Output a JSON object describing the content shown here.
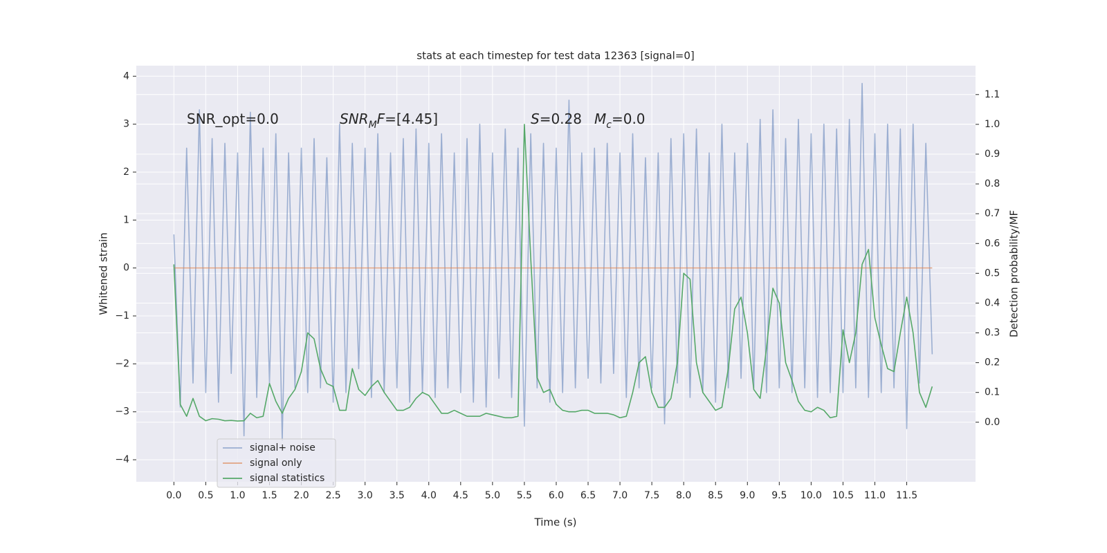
{
  "chart_data": {
    "type": "line",
    "title": "stats at each timestep for test data 12363 [signal=0]",
    "xlabel": "Time (s)",
    "ylabel": "Whitened strain",
    "y2label": "Detection probability/MF",
    "grid": true,
    "legend": "lower left",
    "background": "#eaeaf2",
    "xlim": [
      -0.59,
      12.58
    ],
    "ylim": [
      -4.46,
      4.22
    ],
    "y2lim": [
      -0.2,
      1.197
    ],
    "xticks": [
      {
        "value": 0,
        "label": "0.0"
      },
      0.5,
      {
        "value": 1,
        "label": "1.0"
      },
      1.5,
      {
        "value": 2,
        "label": "2.0"
      },
      2.5,
      {
        "value": 3,
        "label": "3.0"
      },
      3.5,
      {
        "value": 4,
        "label": "4.0"
      },
      4.5,
      {
        "value": 5,
        "label": "5.0"
      },
      5.5,
      {
        "value": 6,
        "label": "6.0"
      },
      6.5,
      {
        "value": 7,
        "label": "7.0"
      },
      7.5,
      {
        "value": 8,
        "label": "8.0"
      },
      8.5,
      {
        "value": 9,
        "label": "9.0"
      },
      9.5,
      {
        "value": 10,
        "label": "10.0"
      },
      10.5,
      {
        "value": 11,
        "label": "11.0"
      },
      11.5
    ],
    "yticks": [
      {
        "value": -4,
        "label": "−4"
      },
      {
        "value": -3,
        "label": "−3"
      },
      {
        "value": -2,
        "label": "−2"
      },
      {
        "value": -1,
        "label": "−1"
      },
      0,
      1,
      2,
      3,
      4
    ],
    "y2ticks": [
      {
        "value": 0,
        "label": "0.0"
      },
      0.1,
      0.2,
      0.3,
      0.4,
      0.5,
      0.6,
      0.7,
      0.8,
      0.9,
      {
        "value": 1,
        "label": "1.0"
      },
      1.1
    ],
    "annotations": [
      [
        {
          "text": "SNR_opt=0.0"
        }
      ],
      [
        {
          "text": "SNR",
          "italic": true
        },
        {
          "text": "M",
          "italic": true,
          "sub": true
        },
        {
          "text": "F",
          "italic": true
        },
        {
          "text": "=[4.45]"
        }
      ],
      [
        {
          "text": "S",
          "italic": true
        },
        {
          "text": "=0.28"
        }
      ],
      [
        {
          "text": "M",
          "italic": true
        },
        {
          "text": "c",
          "italic": true,
          "sub": true
        },
        {
          "text": "=0.0"
        }
      ]
    ],
    "x": [
      0,
      0.1,
      0.2,
      0.3,
      0.4,
      0.5,
      0.6,
      0.7,
      0.8,
      0.9,
      1,
      1.1,
      1.2,
      1.3,
      1.4,
      1.5,
      1.6,
      1.7,
      1.8,
      1.9,
      2,
      2.1,
      2.2,
      2.3,
      2.4,
      2.5,
      2.6,
      2.7,
      2.8,
      2.9,
      3,
      3.1,
      3.2,
      3.3,
      3.4,
      3.5,
      3.6,
      3.7,
      3.8,
      3.9,
      4,
      4.1,
      4.2,
      4.3,
      4.4,
      4.5,
      4.6,
      4.7,
      4.8,
      4.9,
      5,
      5.1,
      5.2,
      5.3,
      5.4,
      5.5,
      5.6,
      5.7,
      5.8,
      5.9,
      6,
      6.1,
      6.2,
      6.3,
      6.4,
      6.5,
      6.6,
      6.7,
      6.8,
      6.9,
      7,
      7.1,
      7.2,
      7.3,
      7.4,
      7.5,
      7.6,
      7.7,
      7.8,
      7.9,
      8,
      8.1,
      8.2,
      8.3,
      8.4,
      8.5,
      8.6,
      8.7,
      8.8,
      8.9,
      9,
      9.1,
      9.2,
      9.3,
      9.4,
      9.5,
      9.6,
      9.7,
      9.8,
      9.9,
      10,
      10.1,
      10.2,
      10.3,
      10.4,
      10.5,
      10.6,
      10.7,
      10.8,
      10.9,
      11,
      11.1,
      11.2,
      11.3,
      11.4,
      11.5,
      11.6,
      11.7,
      11.8,
      11.9
    ],
    "series": [
      {
        "name": "signal+ noise",
        "color": "#4c72b0",
        "alpha": 0.5,
        "axis": "y",
        "values": [
          0.7,
          -2.9,
          2.5,
          -2.4,
          3.3,
          -2.6,
          2.7,
          -2.8,
          2.6,
          -2.2,
          2.4,
          -3.5,
          3.25,
          -2.7,
          2.5,
          -2.4,
          2.8,
          -3.6,
          2.4,
          -2.5,
          2.5,
          -2.6,
          2.7,
          -2.5,
          2.3,
          -2.8,
          3.0,
          -2.6,
          2.6,
          -2.1,
          2.5,
          -2.7,
          2.8,
          -2.6,
          2.4,
          -2.5,
          2.7,
          -2.8,
          2.9,
          -2.6,
          2.6,
          -2.7,
          2.8,
          -2.5,
          2.4,
          -2.6,
          2.7,
          -2.8,
          3.0,
          -2.9,
          2.4,
          -2.3,
          2.9,
          -2.7,
          2.5,
          -3.3,
          2.8,
          -2.5,
          2.6,
          -2.8,
          2.5,
          -2.6,
          3.5,
          -2.5,
          2.4,
          -2.3,
          2.5,
          -2.4,
          2.6,
          -2.2,
          2.4,
          -2.7,
          2.8,
          -2.5,
          2.3,
          -2.5,
          2.4,
          -3.25,
          2.7,
          -2.4,
          2.8,
          -2.7,
          2.9,
          -2.6,
          2.4,
          -2.8,
          3.0,
          -2.5,
          2.4,
          -2.3,
          2.6,
          -2.5,
          3.1,
          -2.6,
          3.3,
          -2.5,
          2.7,
          -2.6,
          3.1,
          -2.5,
          2.8,
          -2.7,
          3.0,
          -2.6,
          2.9,
          -2.6,
          3.1,
          -2.5,
          3.85,
          -2.7,
          2.8,
          -2.6,
          3.0,
          -2.5,
          2.9,
          -3.35,
          3.0,
          -2.4,
          2.6,
          -1.8
        ]
      },
      {
        "name": "signal only",
        "color": "#dd8452",
        "alpha": 0.7,
        "axis": "y",
        "values": [
          0,
          0,
          0,
          0,
          0,
          0,
          0,
          0,
          0,
          0,
          0,
          0,
          0,
          0,
          0,
          0,
          0,
          0,
          0,
          0,
          0,
          0,
          0,
          0,
          0,
          0,
          0,
          0,
          0,
          0,
          0,
          0,
          0,
          0,
          0,
          0,
          0,
          0,
          0,
          0,
          0,
          0,
          0,
          0,
          0,
          0,
          0,
          0,
          0,
          0,
          0,
          0,
          0,
          0,
          0,
          0,
          0,
          0,
          0,
          0,
          0,
          0,
          0,
          0,
          0,
          0,
          0,
          0,
          0,
          0,
          0,
          0,
          0,
          0,
          0,
          0,
          0,
          0,
          0,
          0,
          0,
          0,
          0,
          0,
          0,
          0,
          0,
          0,
          0,
          0,
          0,
          0,
          0,
          0,
          0,
          0,
          0,
          0,
          0,
          0,
          0,
          0,
          0,
          0,
          0,
          0,
          0,
          0,
          0,
          0,
          0,
          0,
          0,
          0,
          0,
          0,
          0,
          0,
          0,
          0
        ]
      },
      {
        "name": "signal statistics",
        "color": "#55a868",
        "alpha": 1,
        "axis": "y2",
        "values": [
          0.53,
          0.06,
          0.02,
          0.08,
          0.02,
          0.005,
          0.012,
          0.01,
          0.005,
          0.006,
          0.004,
          0.005,
          0.03,
          0.015,
          0.02,
          0.13,
          0.07,
          0.03,
          0.08,
          0.11,
          0.17,
          0.3,
          0.28,
          0.18,
          0.13,
          0.12,
          0.04,
          0.04,
          0.18,
          0.11,
          0.09,
          0.12,
          0.14,
          0.1,
          0.07,
          0.04,
          0.04,
          0.05,
          0.08,
          0.1,
          0.09,
          0.06,
          0.03,
          0.03,
          0.04,
          0.03,
          0.02,
          0.02,
          0.02,
          0.03,
          0.025,
          0.02,
          0.015,
          0.015,
          0.02,
          1.0,
          0.55,
          0.15,
          0.1,
          0.11,
          0.06,
          0.04,
          0.035,
          0.035,
          0.04,
          0.04,
          0.03,
          0.03,
          0.03,
          0.025,
          0.015,
          0.02,
          0.1,
          0.2,
          0.22,
          0.1,
          0.05,
          0.05,
          0.08,
          0.2,
          0.5,
          0.48,
          0.2,
          0.1,
          0.07,
          0.04,
          0.05,
          0.18,
          0.38,
          0.42,
          0.3,
          0.11,
          0.08,
          0.25,
          0.45,
          0.4,
          0.2,
          0.14,
          0.07,
          0.04,
          0.035,
          0.05,
          0.04,
          0.015,
          0.02,
          0.31,
          0.2,
          0.3,
          0.53,
          0.58,
          0.35,
          0.26,
          0.18,
          0.17,
          0.3,
          0.42,
          0.3,
          0.1,
          0.05,
          0.12
        ]
      }
    ]
  }
}
